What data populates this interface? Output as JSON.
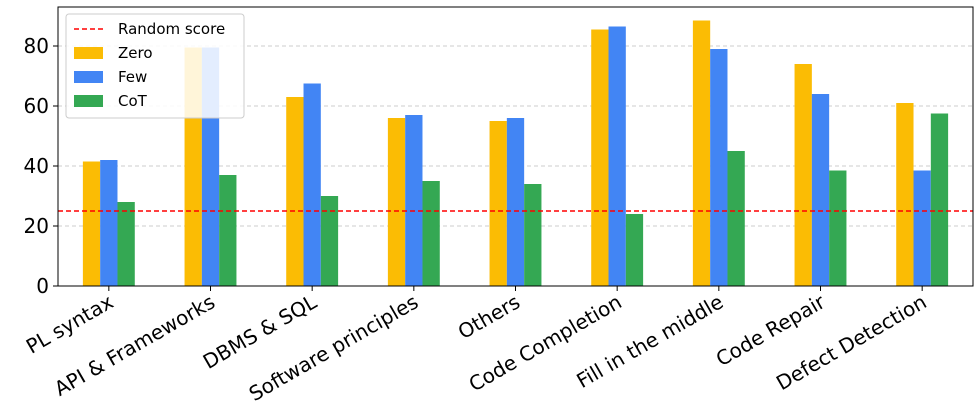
{
  "chart_data": {
    "type": "bar",
    "categories": [
      "PL syntax",
      "API & Frameworks",
      "DBMS & SQL",
      "Software principles",
      "Others",
      "Code Completion",
      "Fill in the middle",
      "Code Repair",
      "Defect Detection"
    ],
    "series": [
      {
        "name": "Zero",
        "color": "#FBBC04",
        "values": [
          41.5,
          79.5,
          63,
          56,
          55,
          85.5,
          88.5,
          74,
          61
        ]
      },
      {
        "name": "Few",
        "color": "#4285F4",
        "values": [
          42,
          79.5,
          67.5,
          57,
          56,
          86.5,
          79,
          64,
          38.5
        ]
      },
      {
        "name": "CoT",
        "color": "#34A853",
        "values": [
          28,
          37,
          30,
          35,
          34,
          24,
          45,
          38.5,
          57.5
        ]
      }
    ],
    "reference_line": {
      "name": "Random score",
      "value": 25,
      "color": "#FF0000"
    },
    "yticks": [
      0,
      20,
      40,
      60,
      80
    ],
    "ylim": [
      0,
      93
    ],
    "title": "",
    "xlabel": "",
    "ylabel": "",
    "grid": "horizontal-dashed",
    "legend_position": "top-left"
  }
}
